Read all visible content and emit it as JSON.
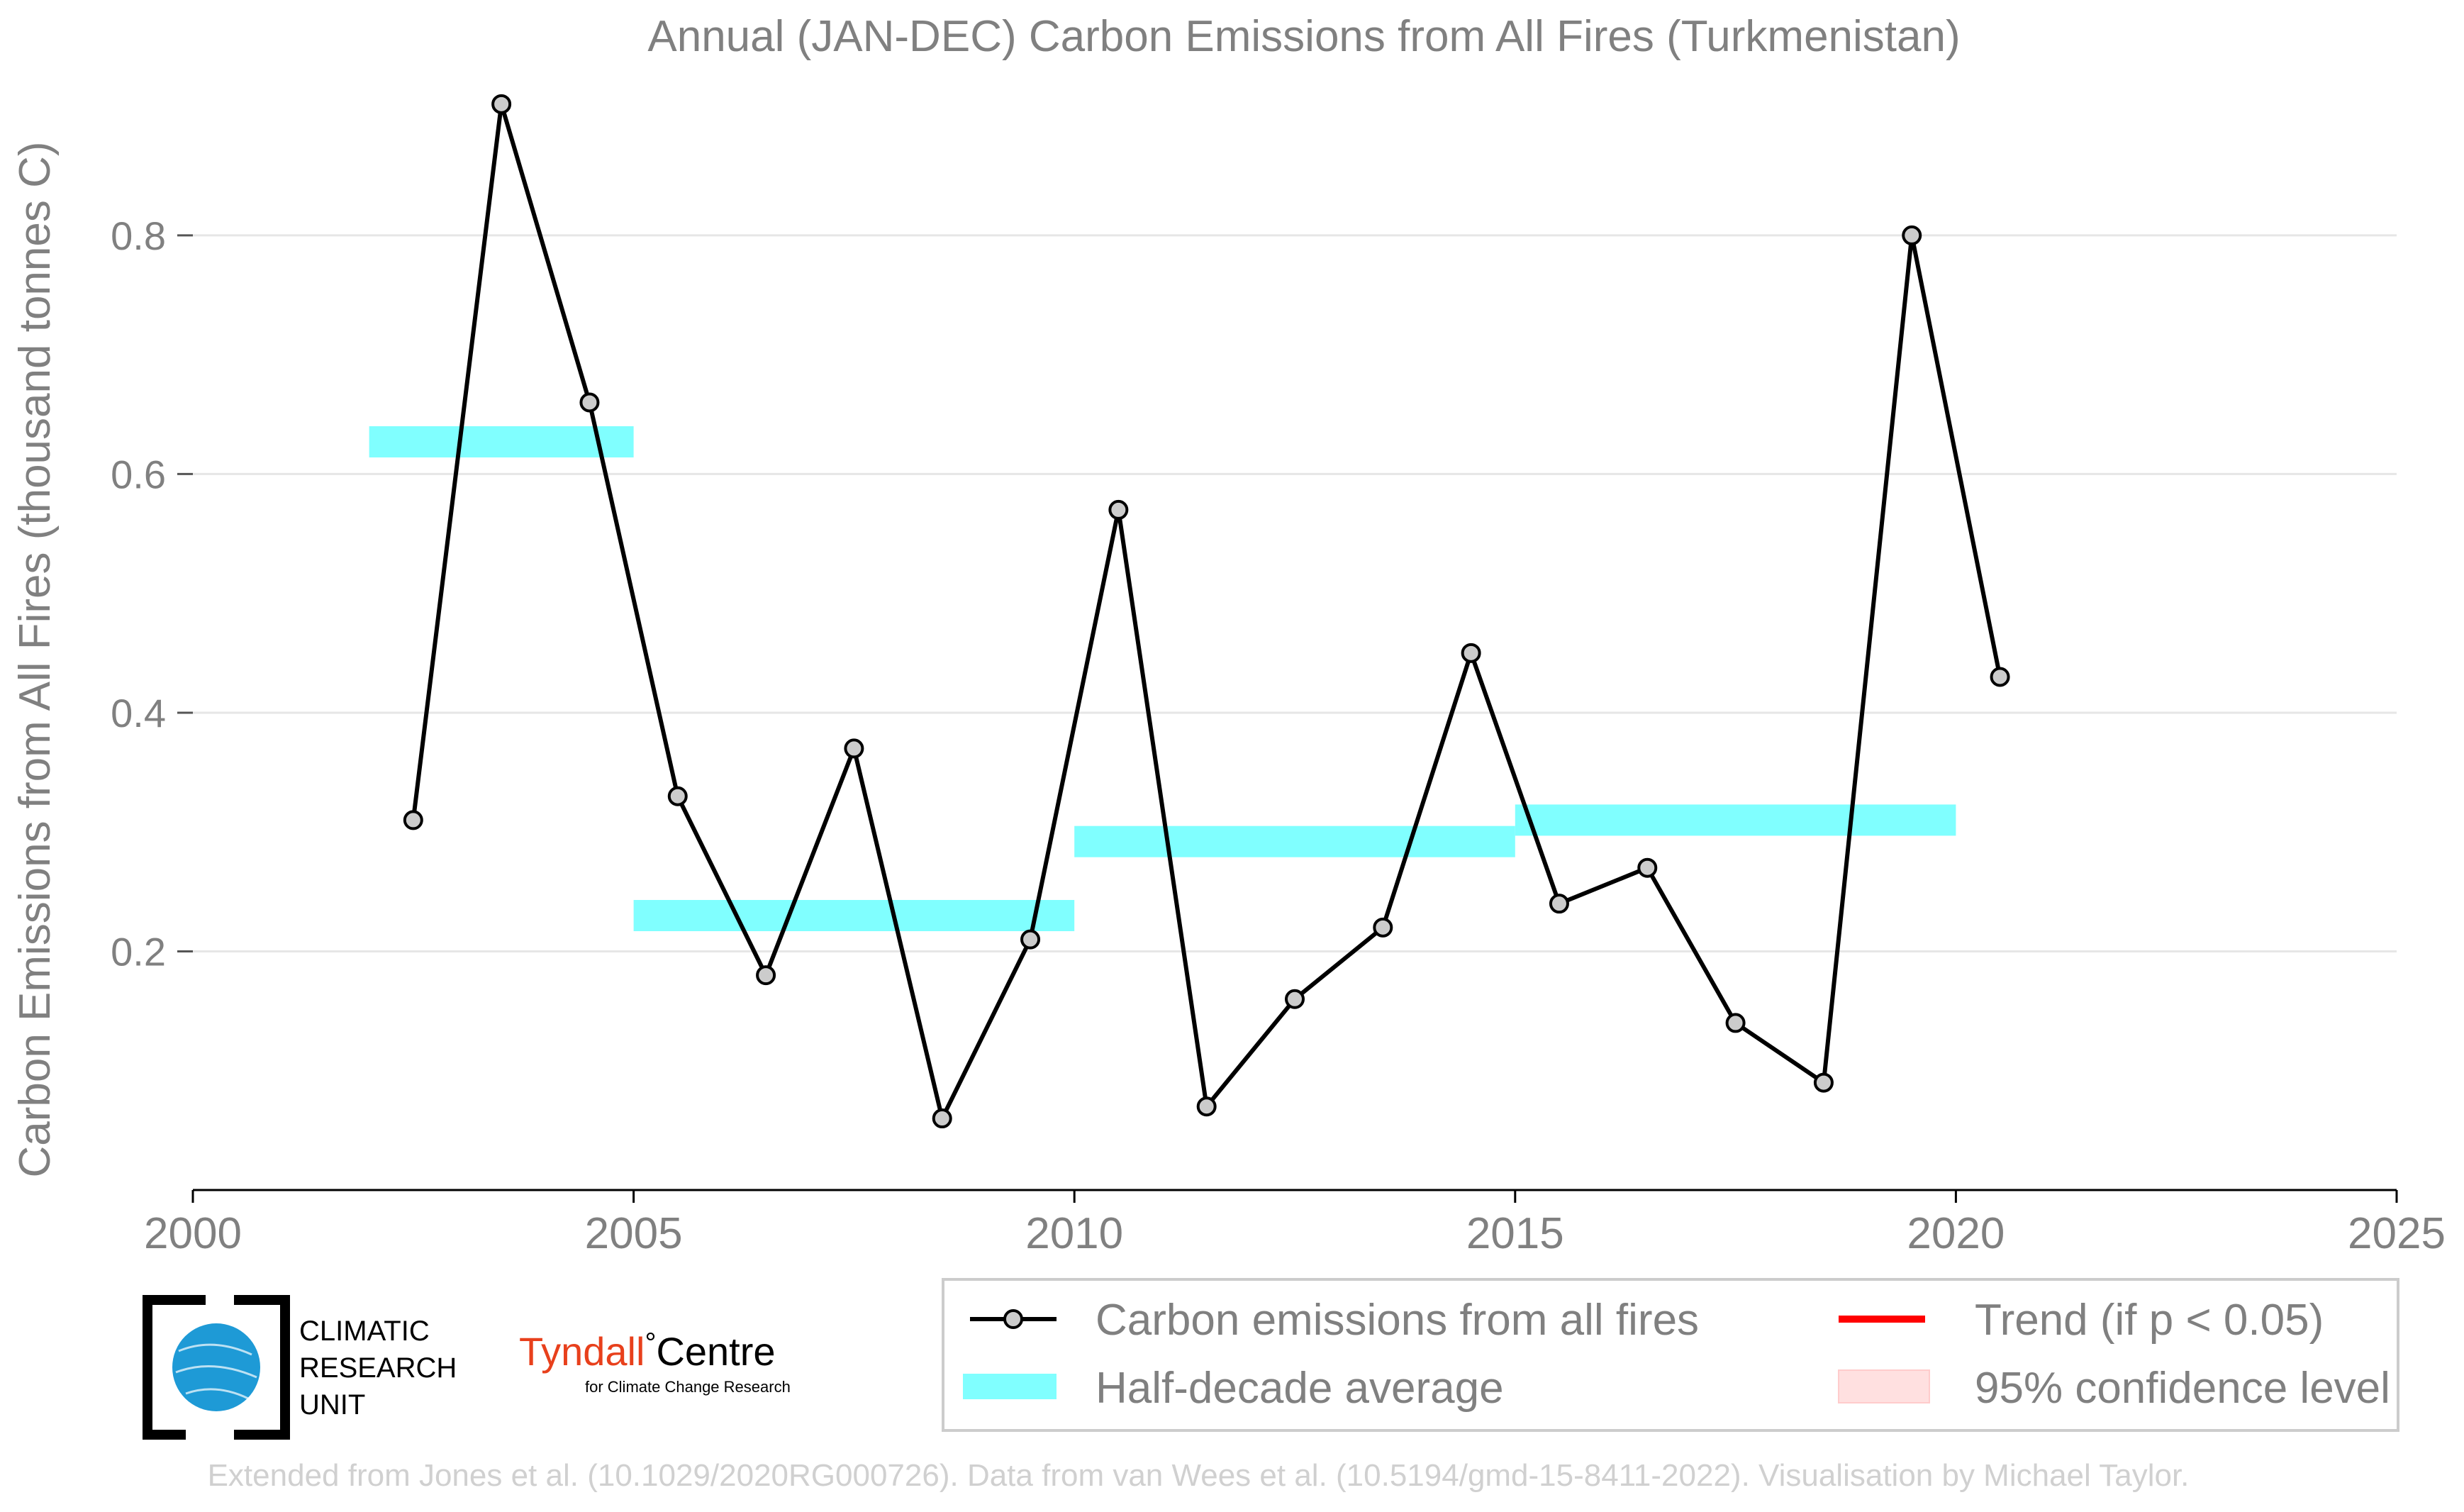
{
  "chart_data": {
    "type": "line",
    "title": "Annual (JAN-DEC) Carbon Emissions from All Fires (Turkmenistan)",
    "xlabel": "",
    "ylabel": "Carbon Emissions from All Fires (thousand tonnes C)",
    "xlim": [
      2000,
      2025
    ],
    "ylim": [
      0,
      0.92
    ],
    "x_ticks": [
      "2000",
      "2005",
      "2010",
      "2015",
      "2020",
      "2025"
    ],
    "y_ticks": [
      "0.2",
      "0.4",
      "0.6",
      "0.8"
    ],
    "grid": "horizontal",
    "series": [
      {
        "name": "Carbon emissions from all fires",
        "color": "#000000",
        "marker_fill": "#cccccc",
        "x": [
          2002.5,
          2003.5,
          2004.5,
          2005.5,
          2006.5,
          2007.5,
          2008.5,
          2009.5,
          2010.5,
          2011.5,
          2012.5,
          2013.5,
          2014.5,
          2015.5,
          2016.5,
          2017.5,
          2018.5,
          2019.5,
          2020.5
        ],
        "values": [
          0.31,
          0.91,
          0.66,
          0.33,
          0.18,
          0.37,
          0.06,
          0.21,
          0.57,
          0.07,
          0.16,
          0.22,
          0.45,
          0.24,
          0.27,
          0.14,
          0.09,
          0.8,
          0.43
        ]
      }
    ],
    "half_decade_average": {
      "name": "Half-decade average",
      "color": "#80ffff",
      "segments": [
        {
          "x_start": 2002,
          "x_end": 2005,
          "value": 0.627
        },
        {
          "x_start": 2005,
          "x_end": 2010,
          "value": 0.23
        },
        {
          "x_start": 2010,
          "x_end": 2015,
          "value": 0.292
        },
        {
          "x_start": 2015,
          "x_end": 2020,
          "value": 0.31
        }
      ]
    },
    "legend": {
      "placement": "bottom-right",
      "entries": [
        {
          "label": "Carbon emissions from all fires",
          "kind": "line-marker",
          "color": "#000000"
        },
        {
          "label": "Trend (if p < 0.05)",
          "kind": "line",
          "color": "#ff0000"
        },
        {
          "label": "Half-decade average",
          "kind": "band",
          "color": "#80ffff"
        },
        {
          "label": "95% confidence level",
          "kind": "patch",
          "color": "#ffe0e0"
        }
      ]
    },
    "footer": "Extended from Jones et al. (10.1029/2020RG000726). Data from van Wees et al. (10.5194/gmd-15-8411-2022). Visualisation by Michael Taylor."
  },
  "logos": {
    "cru": [
      "CLIMATIC",
      "RESEARCH",
      "UNIT"
    ],
    "tyndall_main": "Tyndall",
    "tyndall_degree": "°",
    "tyndall_centre": "Centre",
    "tyndall_sub": "for Climate Change Research"
  },
  "colors": {
    "text_gray": "#808080",
    "footer_gray": "#d0d0d0",
    "grid": "#e6e6e6",
    "tyndall_red": "#e8401c",
    "cru_blue": "#1e9ad6"
  }
}
